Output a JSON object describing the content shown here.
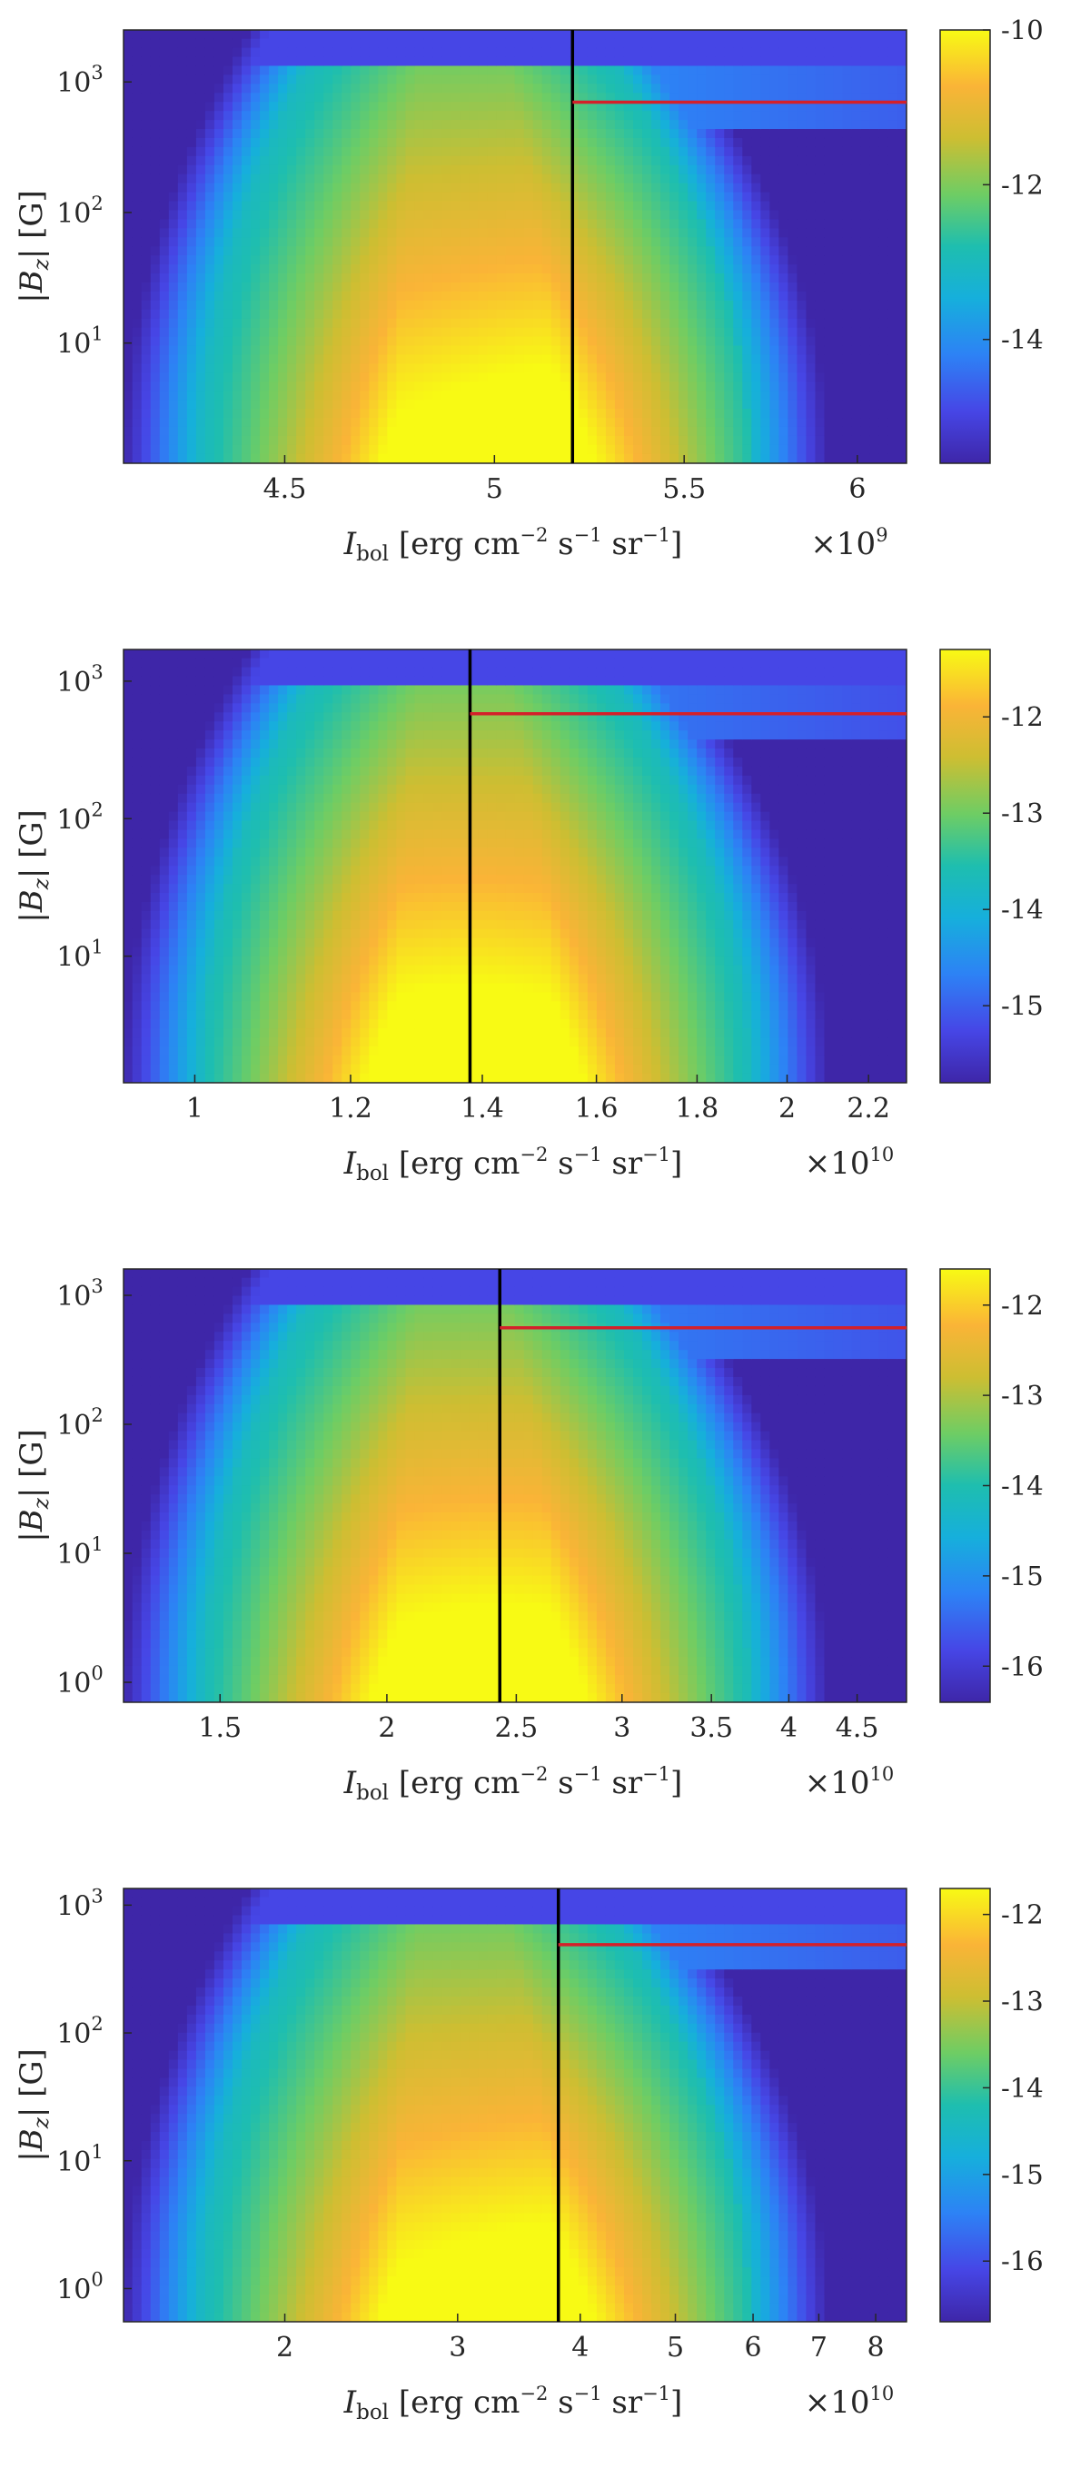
{
  "chart_data": [
    {
      "type": "heatmap",
      "title": "",
      "xlabel": "I_bol [erg cm^-2 s^-1 sr^-1]",
      "ylabel": "|B_z| [G]",
      "x_multiplier": "×10^9",
      "x_scale": "log",
      "y_scale": "log",
      "xlim": [
        4.15,
        6.15
      ],
      "ylim": [
        1.2,
        2500
      ],
      "x_ticks": [
        4.5,
        5,
        5.5,
        6
      ],
      "x_tick_labels": [
        "4.5",
        "5",
        "5.5",
        "6"
      ],
      "y_ticks": [
        10,
        100,
        1000
      ],
      "y_tick_labels": [
        "10^1",
        "10^2",
        "10^3"
      ],
      "colorbar_range": [
        -15.6,
        -10
      ],
      "colorbar_ticks": [
        -14,
        -12,
        -10
      ],
      "colorbar_tick_labels": [
        "-14",
        "-12",
        "-10"
      ],
      "vertical_line_x": 5.2,
      "horizontal_line_y": 700,
      "horizontal_line_color": "#d4202a",
      "vertical_line_color": "#000000"
    },
    {
      "type": "heatmap",
      "title": "",
      "xlabel": "I_bol [erg cm^-2 s^-1 sr^-1]",
      "ylabel": "|B_z| [G]",
      "x_multiplier": "×10^10",
      "x_scale": "log",
      "y_scale": "log",
      "xlim": [
        0.92,
        2.3
      ],
      "ylim": [
        1.2,
        1700
      ],
      "x_ticks": [
        1,
        1.2,
        1.4,
        1.6,
        1.8,
        2,
        2.2
      ],
      "x_tick_labels": [
        "1",
        "1.2",
        "1.4",
        "1.6",
        "1.8",
        "2",
        "2.2"
      ],
      "y_ticks": [
        10,
        100,
        1000
      ],
      "y_tick_labels": [
        "10^1",
        "10^2",
        "10^3"
      ],
      "colorbar_range": [
        -15.8,
        -11.3
      ],
      "colorbar_ticks": [
        -15,
        -14,
        -13,
        -12
      ],
      "colorbar_tick_labels": [
        "-15",
        "-14",
        "-13",
        "-12"
      ],
      "vertical_line_x": 1.38,
      "horizontal_line_y": 580,
      "horizontal_line_color": "#d4202a",
      "vertical_line_color": "#000000"
    },
    {
      "type": "heatmap",
      "title": "",
      "xlabel": "I_bol [erg cm^-2 s^-1 sr^-1]",
      "ylabel": "|B_z| [G]",
      "x_multiplier": "×10^10",
      "x_scale": "log",
      "y_scale": "log",
      "xlim": [
        1.27,
        4.9
      ],
      "ylim": [
        0.7,
        1600
      ],
      "x_ticks": [
        1.5,
        2,
        2.5,
        3,
        3.5,
        4,
        4.5
      ],
      "x_tick_labels": [
        "1.5",
        "2",
        "2.5",
        "3",
        "3.5",
        "4",
        "4.5"
      ],
      "y_ticks": [
        1,
        10,
        100,
        1000
      ],
      "y_tick_labels": [
        "10^0",
        "10^1",
        "10^2",
        "10^3"
      ],
      "colorbar_range": [
        -16.4,
        -11.6
      ],
      "colorbar_ticks": [
        -16,
        -15,
        -14,
        -13,
        -12
      ],
      "colorbar_tick_labels": [
        "-16",
        "-15",
        "-14",
        "-13",
        "-12"
      ],
      "vertical_line_x": 2.43,
      "horizontal_line_y": 560,
      "horizontal_line_color": "#d4202a",
      "vertical_line_color": "#000000"
    },
    {
      "type": "heatmap",
      "title": "",
      "xlabel": "I_bol [erg cm^-2 s^-1 sr^-1]",
      "ylabel": "|B_z| [G]",
      "x_multiplier": "×10^10",
      "x_scale": "log",
      "y_scale": "log",
      "xlim": [
        1.37,
        8.6
      ],
      "ylim": [
        0.55,
        1350
      ],
      "x_ticks": [
        2,
        3,
        4,
        5,
        6,
        7,
        8
      ],
      "x_tick_labels": [
        "2",
        "3",
        "4",
        "5",
        "6",
        "7",
        "8"
      ],
      "y_ticks": [
        1,
        10,
        100,
        1000
      ],
      "y_tick_labels": [
        "10^0",
        "10^1",
        "10^2",
        "10^3"
      ],
      "colorbar_range": [
        -16.7,
        -11.7
      ],
      "colorbar_ticks": [
        -16,
        -15,
        -14,
        -13,
        -12
      ],
      "colorbar_tick_labels": [
        "-16",
        "-15",
        "-14",
        "-13",
        "-12"
      ],
      "vertical_line_x": 3.8,
      "horizontal_line_y": 490,
      "horizontal_line_color": "#d4202a",
      "vertical_line_color": "#000000"
    }
  ]
}
